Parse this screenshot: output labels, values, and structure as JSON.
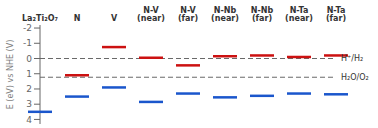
{
  "chart_data": {
    "type": "scatter",
    "marker": "dash",
    "categories": [
      "La₂Ti₂O₇",
      "N",
      "V",
      "N-V\n(near)",
      "N-V\n(far)",
      "N-Nb\n(near)",
      "N-Nb\n(far)",
      "N-Ta\n(near)",
      "N-Ta\n(far)"
    ],
    "series": [
      {
        "color": "#1a56cc",
        "values": [
          3.5,
          2.5,
          1.9,
          2.85,
          2.3,
          2.55,
          2.45,
          2.3,
          2.35
        ]
      },
      {
        "color": "#cc1111",
        "values": [
          null,
          1.1,
          -0.75,
          -0.05,
          0.45,
          -0.15,
          -0.2,
          -0.1,
          -0.2
        ]
      }
    ],
    "ylabel": "E (eV) vs NHE (V)",
    "ylim": [
      -2.2,
      4.3
    ],
    "yticks": [
      -2,
      -1,
      0,
      1,
      2,
      3,
      4
    ],
    "annotations": [
      {
        "text": "H⁺/H₂",
        "y": 0.0,
        "line_style": "dashed"
      },
      {
        "text": "H₂O/O₂",
        "y": 1.23,
        "line_style": "dashed"
      }
    ],
    "grid": false
  }
}
